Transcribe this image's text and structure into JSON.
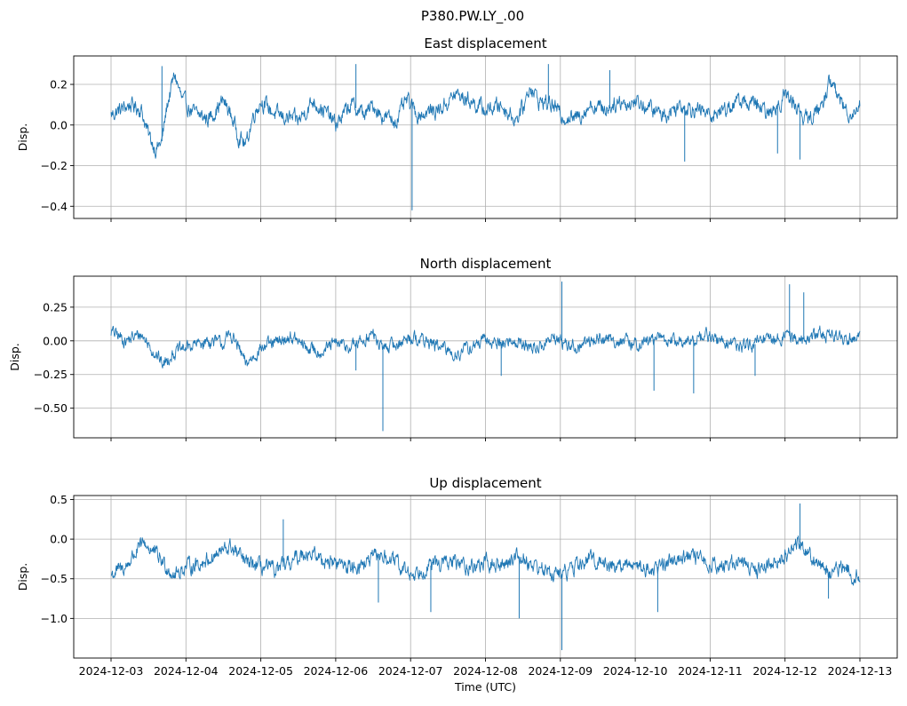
{
  "figure": {
    "suptitle": "P380.PW.LY_.00"
  },
  "colors": {
    "series": "#1f77b4",
    "grid": "#b0b0b0",
    "axis": "#000000"
  },
  "chart_data": [
    {
      "type": "line",
      "title": "East displacement",
      "xlabel": "",
      "ylabel": "Disp.",
      "xlim": [
        0,
        10
      ],
      "ylim": [
        -0.46,
        0.34
      ],
      "yticks": [
        -0.4,
        -0.2,
        0.0,
        0.2
      ],
      "ytick_labels": [
        "−0.4",
        "−0.2",
        "0.0",
        "0.2"
      ],
      "xtick_labels_visible": false,
      "grid": true,
      "series": [
        {
          "name": "East",
          "noise": 0.028,
          "anchors": [
            [
              0,
              0.05
            ],
            [
              0.1,
              0.07
            ],
            [
              0.25,
              0.1
            ],
            [
              0.4,
              0.08
            ],
            [
              0.5,
              -0.05
            ],
            [
              0.6,
              -0.12
            ],
            [
              0.68,
              -0.08
            ],
            [
              0.75,
              0.1
            ],
            [
              0.85,
              0.25
            ],
            [
              0.95,
              0.12
            ],
            [
              1.1,
              0.06
            ],
            [
              1.3,
              0.03
            ],
            [
              1.5,
              0.12
            ],
            [
              1.6,
              0.05
            ],
            [
              1.7,
              -0.05
            ],
            [
              1.8,
              -0.1
            ],
            [
              1.9,
              0.05
            ],
            [
              2.0,
              0.12
            ],
            [
              2.2,
              0.05
            ],
            [
              2.5,
              0.02
            ],
            [
              2.7,
              0.12
            ],
            [
              2.9,
              0.05
            ],
            [
              3.0,
              0.0
            ],
            [
              3.2,
              0.1
            ],
            [
              3.4,
              0.05
            ],
            [
              3.5,
              0.1
            ],
            [
              3.6,
              0.05
            ],
            [
              3.8,
              0.02
            ],
            [
              3.95,
              0.12
            ],
            [
              4.1,
              0.05
            ],
            [
              4.4,
              0.08
            ],
            [
              4.6,
              0.15
            ],
            [
              4.8,
              0.12
            ],
            [
              5.0,
              0.07
            ],
            [
              5.2,
              0.1
            ],
            [
              5.4,
              0.03
            ],
            [
              5.5,
              0.08
            ],
            [
              5.6,
              0.2
            ],
            [
              5.7,
              0.12
            ],
            [
              5.9,
              0.1
            ],
            [
              6.0,
              0.05
            ],
            [
              6.2,
              0.03
            ],
            [
              6.4,
              0.1
            ],
            [
              6.6,
              0.08
            ],
            [
              6.8,
              0.12
            ],
            [
              6.9,
              0.1
            ],
            [
              7.0,
              0.12
            ],
            [
              7.2,
              0.08
            ],
            [
              7.4,
              0.05
            ],
            [
              7.6,
              0.1
            ],
            [
              7.8,
              0.08
            ],
            [
              8.0,
              0.05
            ],
            [
              8.2,
              0.08
            ],
            [
              8.4,
              0.12
            ],
            [
              8.6,
              0.1
            ],
            [
              8.8,
              0.05
            ],
            [
              8.9,
              0.1
            ],
            [
              9.0,
              0.15
            ],
            [
              9.1,
              0.12
            ],
            [
              9.3,
              0.02
            ],
            [
              9.5,
              0.1
            ],
            [
              9.6,
              0.22
            ],
            [
              9.7,
              0.15
            ],
            [
              9.8,
              0.08
            ],
            [
              9.9,
              0.05
            ],
            [
              10.0,
              0.12
            ]
          ],
          "spikes": [
            [
              4.02,
              -0.42
            ],
            [
              5.84,
              0.3
            ],
            [
              7.66,
              -0.18
            ],
            [
              9.2,
              -0.17
            ],
            [
              8.9,
              -0.14
            ],
            [
              3.27,
              0.3
            ],
            [
              0.68,
              0.29
            ],
            [
              6.66,
              0.27
            ]
          ]
        }
      ]
    },
    {
      "type": "line",
      "title": "North displacement",
      "xlabel": "",
      "ylabel": "Disp.",
      "xlim": [
        0,
        10
      ],
      "ylim": [
        -0.72,
        0.48
      ],
      "yticks": [
        -0.5,
        -0.25,
        0.0,
        0.25
      ],
      "ytick_labels": [
        "−0.50",
        "−0.25",
        "0.00",
        "0.25"
      ],
      "xtick_labels_visible": false,
      "grid": true,
      "series": [
        {
          "name": "North",
          "noise": 0.035,
          "anchors": [
            [
              0,
              0.07
            ],
            [
              0.2,
              0.0
            ],
            [
              0.4,
              0.05
            ],
            [
              0.6,
              -0.1
            ],
            [
              0.7,
              -0.18
            ],
            [
              0.8,
              -0.1
            ],
            [
              1.0,
              -0.05
            ],
            [
              1.3,
              0.0
            ],
            [
              1.5,
              -0.02
            ],
            [
              1.6,
              0.05
            ],
            [
              1.7,
              -0.05
            ],
            [
              1.8,
              -0.18
            ],
            [
              2.0,
              -0.05
            ],
            [
              2.2,
              -0.02
            ],
            [
              2.4,
              0.03
            ],
            [
              2.6,
              -0.05
            ],
            [
              2.8,
              -0.08
            ],
            [
              3.0,
              -0.02
            ],
            [
              3.2,
              -0.05
            ],
            [
              3.4,
              0.02
            ],
            [
              3.5,
              0.05
            ],
            [
              3.6,
              -0.05
            ],
            [
              3.8,
              -0.03
            ],
            [
              4.0,
              0.03
            ],
            [
              4.2,
              0.0
            ],
            [
              4.4,
              -0.05
            ],
            [
              4.6,
              -0.1
            ],
            [
              4.8,
              -0.05
            ],
            [
              5.0,
              0.0
            ],
            [
              5.2,
              -0.02
            ],
            [
              5.4,
              0.0
            ],
            [
              5.6,
              -0.05
            ],
            [
              5.7,
              -0.05
            ],
            [
              5.9,
              0.02
            ],
            [
              6.0,
              0.0
            ],
            [
              6.2,
              -0.05
            ],
            [
              6.5,
              0.02
            ],
            [
              6.8,
              0.0
            ],
            [
              7.0,
              -0.03
            ],
            [
              7.3,
              0.02
            ],
            [
              7.5,
              0.0
            ],
            [
              7.7,
              -0.02
            ],
            [
              7.9,
              0.05
            ],
            [
              8.1,
              0.0
            ],
            [
              8.3,
              -0.02
            ],
            [
              8.5,
              -0.05
            ],
            [
              8.7,
              0.0
            ],
            [
              8.9,
              0.02
            ],
            [
              9.0,
              0.05
            ],
            [
              9.2,
              0.0
            ],
            [
              9.4,
              0.05
            ],
            [
              9.6,
              0.05
            ],
            [
              9.8,
              0.02
            ],
            [
              10.0,
              0.05
            ]
          ],
          "spikes": [
            [
              3.63,
              -0.67
            ],
            [
              6.02,
              0.44
            ],
            [
              7.25,
              -0.37
            ],
            [
              7.78,
              -0.39
            ],
            [
              9.06,
              0.42
            ],
            [
              9.25,
              0.36
            ],
            [
              8.6,
              -0.26
            ],
            [
              3.27,
              -0.22
            ],
            [
              5.21,
              -0.26
            ]
          ]
        }
      ]
    },
    {
      "type": "line",
      "title": "Up displacement",
      "xlabel": "Time (UTC)",
      "ylabel": "Disp.",
      "xlim": [
        0,
        10
      ],
      "ylim": [
        -1.5,
        0.55
      ],
      "yticks": [
        -1.0,
        -0.5,
        0.0,
        0.5
      ],
      "ytick_labels": [
        "−1.0",
        "−0.5",
        "0.0",
        "0.5"
      ],
      "xtick_labels_visible": true,
      "xticks": [
        0,
        1,
        2,
        3,
        4,
        5,
        6,
        7,
        8,
        9,
        10
      ],
      "xtick_labels": [
        "2024-12-03",
        "2024-12-04",
        "2024-12-05",
        "2024-12-06",
        "2024-12-07",
        "2024-12-08",
        "2024-12-09",
        "2024-12-10",
        "2024-12-11",
        "2024-12-12",
        "2024-12-13"
      ],
      "grid": true,
      "series": [
        {
          "name": "Up",
          "noise": 0.07,
          "anchors": [
            [
              0,
              -0.45
            ],
            [
              0.2,
              -0.35
            ],
            [
              0.3,
              -0.2
            ],
            [
              0.45,
              -0.05
            ],
            [
              0.55,
              -0.15
            ],
            [
              0.7,
              -0.3
            ],
            [
              0.85,
              -0.45
            ],
            [
              1.0,
              -0.35
            ],
            [
              1.2,
              -0.3
            ],
            [
              1.4,
              -0.2
            ],
            [
              1.6,
              -0.1
            ],
            [
              1.8,
              -0.3
            ],
            [
              2.0,
              -0.35
            ],
            [
              2.2,
              -0.4
            ],
            [
              2.4,
              -0.3
            ],
            [
              2.6,
              -0.15
            ],
            [
              2.8,
              -0.25
            ],
            [
              3.0,
              -0.3
            ],
            [
              3.2,
              -0.35
            ],
            [
              3.4,
              -0.3
            ],
            [
              3.6,
              -0.2
            ],
            [
              3.8,
              -0.3
            ],
            [
              4.0,
              -0.45
            ],
            [
              4.2,
              -0.35
            ],
            [
              4.4,
              -0.3
            ],
            [
              4.6,
              -0.3
            ],
            [
              4.8,
              -0.35
            ],
            [
              5.0,
              -0.3
            ],
            [
              5.2,
              -0.35
            ],
            [
              5.4,
              -0.2
            ],
            [
              5.6,
              -0.3
            ],
            [
              5.8,
              -0.4
            ],
            [
              6.0,
              -0.45
            ],
            [
              6.2,
              -0.35
            ],
            [
              6.4,
              -0.25
            ],
            [
              6.6,
              -0.3
            ],
            [
              6.8,
              -0.35
            ],
            [
              7.0,
              -0.3
            ],
            [
              7.2,
              -0.4
            ],
            [
              7.4,
              -0.3
            ],
            [
              7.6,
              -0.2
            ],
            [
              7.8,
              -0.25
            ],
            [
              8.0,
              -0.3
            ],
            [
              8.2,
              -0.35
            ],
            [
              8.4,
              -0.25
            ],
            [
              8.6,
              -0.4
            ],
            [
              8.8,
              -0.3
            ],
            [
              9.0,
              -0.2
            ],
            [
              9.2,
              -0.05
            ],
            [
              9.4,
              -0.25
            ],
            [
              9.6,
              -0.45
            ],
            [
              9.8,
              -0.35
            ],
            [
              10.0,
              -0.5
            ]
          ],
          "spikes": [
            [
              6.02,
              -1.4
            ],
            [
              5.45,
              -1.0
            ],
            [
              4.27,
              -0.92
            ],
            [
              7.3,
              -0.92
            ],
            [
              2.3,
              0.25
            ],
            [
              9.2,
              0.45
            ],
            [
              3.57,
              -0.8
            ],
            [
              9.58,
              -0.75
            ]
          ]
        }
      ]
    }
  ]
}
